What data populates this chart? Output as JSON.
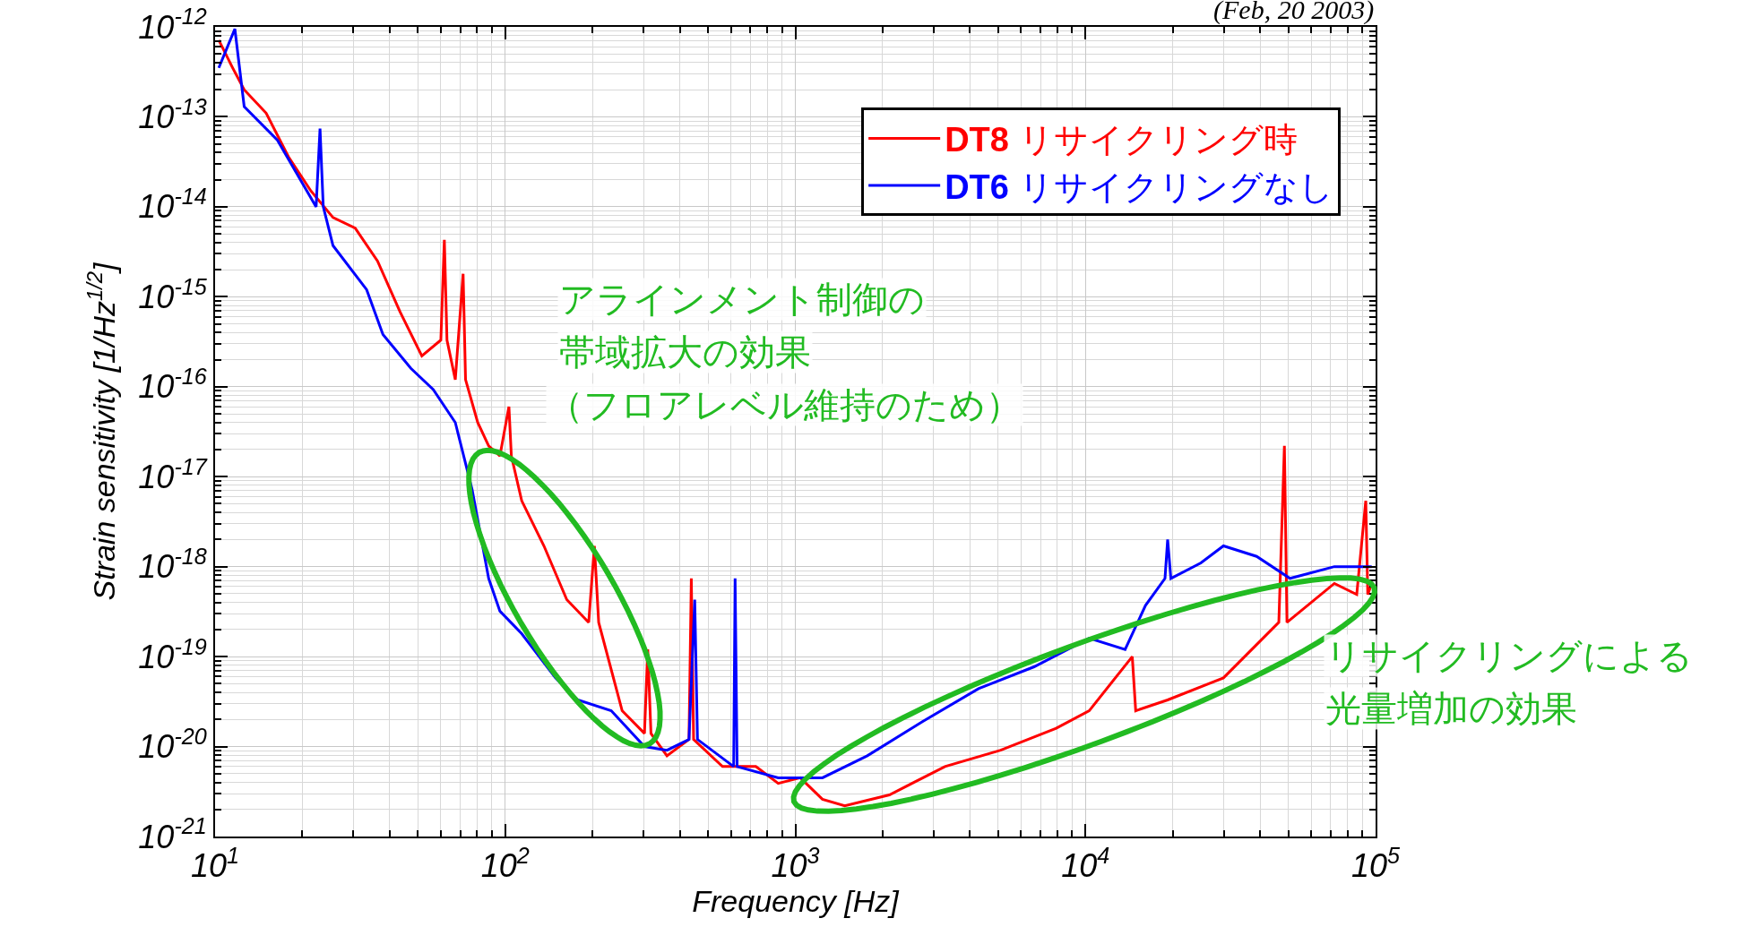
{
  "chart_data": {
    "type": "line",
    "xlabel": "Frequency [Hz]",
    "ylabel": "Strain sensitivity [1/Hz$^{1/2}$]",
    "log": "xy",
    "xlim": [
      10,
      100000
    ],
    "ylim": [
      1e-21,
      1e-12
    ],
    "xticks": [
      {
        "value": 10,
        "label": "10$^{1}$"
      },
      {
        "value": 100,
        "label": "10$^{2}$"
      },
      {
        "value": 1000,
        "label": "10$^{3}$"
      },
      {
        "value": 10000,
        "label": "10$^{4}$"
      },
      {
        "value": 100000,
        "label": "10$^{5}$"
      }
    ],
    "yticks": [
      {
        "value": 1e-21,
        "label": "10$^{-21}$"
      },
      {
        "value": 1e-20,
        "label": "10$^{-20}$"
      },
      {
        "value": 1e-19,
        "label": "10$^{-19}$"
      },
      {
        "value": 1e-18,
        "label": "10$^{-18}$"
      },
      {
        "value": 1e-17,
        "label": "10$^{-17}$"
      },
      {
        "value": 1e-16,
        "label": "10$^{-16}$"
      },
      {
        "value": 1e-15,
        "label": "10$^{-15}$"
      },
      {
        "value": 1e-14,
        "label": "10$^{-14}$"
      },
      {
        "value": 1e-13,
        "label": "10$^{-13}$"
      },
      {
        "value": 1e-12,
        "label": "10$^{-12}$"
      }
    ],
    "grid": true,
    "legend": "top right",
    "line_style": "solid",
    "series": [
      {
        "name": "DT8 リサイクリング時",
        "color": "#ff0000",
        "x": [
          10.3,
          11.5,
          12.6,
          15.0,
          17.9,
          21.4,
          25.5,
          30.4,
          36.3,
          43.4,
          51.6,
          60,
          61.7,
          63,
          67.3,
          71.6,
          73,
          80.4,
          87.7,
          95.9,
          103,
          105,
          114,
          136,
          163,
          194,
          203,
          210,
          253,
          302,
          310,
          318,
          361,
          430,
          438,
          446,
          561,
          731,
          873,
          1040,
          1240,
          1480,
          2110,
          3280,
          5100,
          7930,
          10300,
          14500,
          14900,
          19200,
          29900,
          46400,
          48500,
          49500,
          72100,
          86100,
          92500,
          94000,
          97000
        ],
        "values": [
          7.1e-13,
          3.5e-13,
          2e-13,
          1.1e-13,
          3.6e-14,
          1.5e-14,
          7.6e-15,
          5.8e-15,
          2.5e-15,
          6.8e-16,
          2.2e-16,
          3.3e-16,
          4.3e-15,
          3.3e-16,
          1.2e-16,
          1.8e-15,
          1.2e-16,
          4e-17,
          2.2e-17,
          1.7e-17,
          6e-17,
          1.7e-17,
          5.4e-18,
          1.7e-18,
          4.3e-19,
          2.4e-19,
          1.7e-18,
          2.4e-19,
          2.5e-20,
          1.4e-20,
          1.2e-19,
          1.4e-20,
          7.9e-21,
          1.2e-20,
          7.4e-19,
          1.2e-20,
          6e-21,
          6e-21,
          3.9e-21,
          4.5e-21,
          2.6e-21,
          2.2e-21,
          2.9e-21,
          6e-21,
          9.1e-21,
          1.6e-20,
          2.5e-20,
          1e-19,
          2.5e-20,
          3.3e-20,
          5.8e-20,
          2.4e-19,
          2.2e-17,
          2.4e-19,
          6.5e-19,
          4.9e-19,
          5.4e-18,
          4.9e-19,
          6.5e-19
        ]
      },
      {
        "name": "DT6 リサイクリングなし",
        "color": "#0000ff",
        "x": [
          10.3,
          11.7,
          12.6,
          16.4,
          22.3,
          23.0,
          23.6,
          25.5,
          33.3,
          37.9,
          47.3,
          56.5,
          67.3,
          76.9,
          87.7,
          95.9,
          114,
          149,
          178,
          232,
          302,
          361,
          430,
          450,
          460,
          613,
          620,
          630,
          873,
          1240,
          1770,
          2750,
          4280,
          6650,
          10300,
          13700,
          16100,
          18800,
          19200,
          19700,
          25000,
          29900,
          38900,
          50700,
          72100,
          97000
        ],
        "values": [
          3.5e-13,
          9.5e-13,
          1.3e-13,
          5.5e-14,
          1e-14,
          7.4e-14,
          1e-14,
          3.7e-15,
          1.2e-15,
          3.8e-16,
          1.6e-16,
          9.3e-17,
          4e-17,
          7.2e-18,
          7.4e-19,
          3.2e-19,
          1.8e-19,
          5.8e-20,
          3.3e-20,
          2.5e-20,
          1e-20,
          9.1e-21,
          1.2e-20,
          4.3e-19,
          1.2e-20,
          6e-21,
          7.4e-19,
          6e-21,
          4.5e-21,
          4.5e-21,
          7.9e-21,
          1.9e-20,
          4.4e-20,
          7.7e-20,
          1.6e-19,
          1.2e-19,
          3.7e-19,
          7.4e-19,
          2e-18,
          7.4e-19,
          1.1e-18,
          1.7e-18,
          1.3e-18,
          7.4e-19,
          1e-18,
          1e-18
        ]
      }
    ],
    "annotations": [
      "(Feb, 20 2003)",
      "アラインメント制御の",
      "帯域拡大の効果",
      "（フロアレベル維持のため）",
      "リサイクリングによる",
      "光量増加の効果"
    ]
  }
}
